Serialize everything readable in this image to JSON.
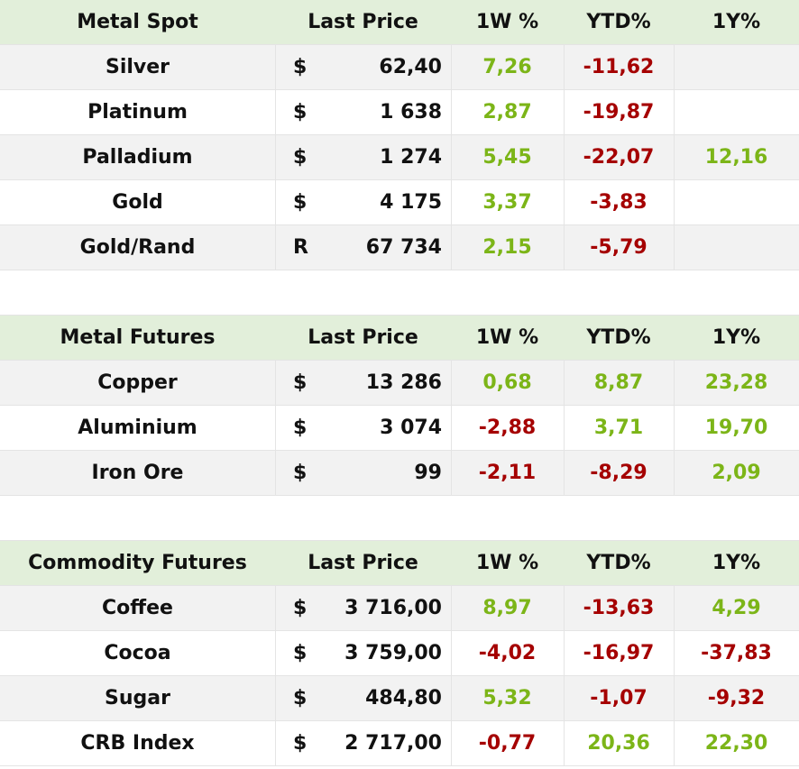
{
  "tables": [
    {
      "header": {
        "title": "Metal Spot",
        "price": "Last Price",
        "w1": "1W %",
        "ytd": "YTD%",
        "y1": "1Y%"
      },
      "rows": [
        {
          "name": "Silver",
          "currency": "$",
          "price": "62,40",
          "w1": "7,26",
          "ytd": "-11,62",
          "y1": null
        },
        {
          "name": "Platinum",
          "currency": "$",
          "price": "1 638",
          "w1": "2,87",
          "ytd": "-19,87",
          "y1": null
        },
        {
          "name": "Palladium",
          "currency": "$",
          "price": "1 274",
          "w1": "5,45",
          "ytd": "-22,07",
          "y1": "12,16"
        },
        {
          "name": "Gold",
          "currency": "$",
          "price": "4 175",
          "w1": "3,37",
          "ytd": "-3,83",
          "y1": null
        },
        {
          "name": "Gold/Rand",
          "currency": "R",
          "price": "67 734",
          "w1": "2,15",
          "ytd": "-5,79",
          "y1": null
        }
      ]
    },
    {
      "header": {
        "title": "Metal Futures",
        "price": "Last Price",
        "w1": "1W %",
        "ytd": "YTD%",
        "y1": "1Y%"
      },
      "rows": [
        {
          "name": "Copper",
          "currency": "$",
          "price": "13 286",
          "w1": "0,68",
          "ytd": "8,87",
          "y1": "23,28"
        },
        {
          "name": "Aluminium",
          "currency": "$",
          "price": "3 074",
          "w1": "-2,88",
          "ytd": "3,71",
          "y1": "19,70"
        },
        {
          "name": "Iron Ore",
          "currency": "$",
          "price": "99",
          "w1": "-2,11",
          "ytd": "-8,29",
          "y1": "2,09"
        }
      ]
    },
    {
      "header": {
        "title": "Commodity Futures",
        "price": "Last Price",
        "w1": "1W %",
        "ytd": "YTD%",
        "y1": "1Y%"
      },
      "rows": [
        {
          "name": "Coffee",
          "currency": "$",
          "price": "3 716,00",
          "w1": "8,97",
          "ytd": "-13,63",
          "y1": "4,29"
        },
        {
          "name": "Cocoa",
          "currency": "$",
          "price": "3 759,00",
          "w1": "-4,02",
          "ytd": "-16,97",
          "y1": "-37,83"
        },
        {
          "name": "Sugar",
          "currency": "$",
          "price": "484,80",
          "w1": "5,32",
          "ytd": "-1,07",
          "y1": "-9,32"
        },
        {
          "name": "CRB Index",
          "currency": "$",
          "price": "2 717,00",
          "w1": "-0,77",
          "ytd": "20,36",
          "y1": "22,30"
        }
      ]
    }
  ]
}
